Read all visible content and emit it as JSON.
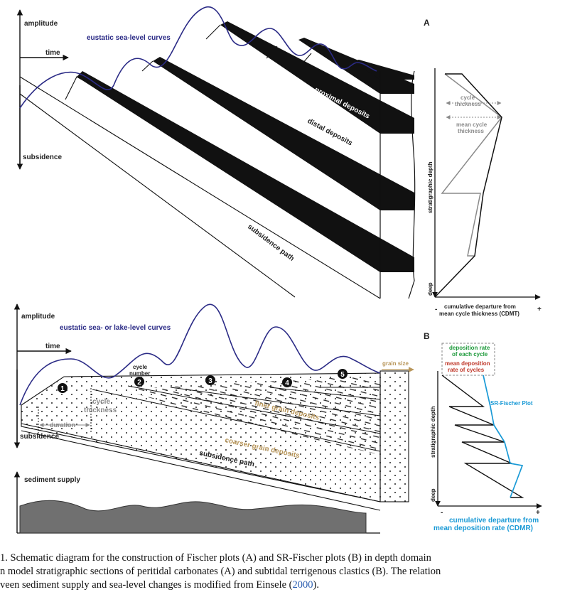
{
  "panel_a": {
    "letter": "A",
    "amplitude": "amplitude",
    "time": "time",
    "subsidence": "subsidence",
    "curves_label": "eustatic sea-level curves",
    "proximal": "proximal deposits",
    "distal": "distal deposits",
    "subsidence_path": "subsidence path",
    "cycle_thickness_1": "cycle",
    "cycle_thickness_2": "thickness",
    "mean_thickness_1": "mean cycle",
    "mean_thickness_2": "thickness",
    "ylabel": "stratigraphic depth",
    "deep": "deep",
    "minus": "-",
    "plus": "+",
    "xlabel_1": "cumulative departure from",
    "xlabel_2": "mean cycle thickness (CDMT)"
  },
  "panel_b": {
    "letter": "B",
    "amplitude": "amplitude",
    "time": "time",
    "subsidence": "subsidence",
    "curves_label": "eustatic sea- or lake-level curves",
    "cycle_number_1": "cycle",
    "cycle_number_2": "number",
    "cycles": [
      "1",
      "2",
      "3",
      "4",
      "5"
    ],
    "cycle_thickness_1": "cycle",
    "cycle_thickness_2": "thickness",
    "duration": "duration",
    "finer": "finer grain deposits",
    "coarser": "coarser grain deposits",
    "subsidence_path": "subsidence path",
    "grain_size": "grain size",
    "sediment_supply": "sediment supply",
    "rate_each_1": "deposition rate",
    "rate_each_2": "of each cycle",
    "mean_rate_1": "mean deposition",
    "mean_rate_2": "rate of cycles",
    "sr_fischer": "SR-Fischer Plot",
    "ylabel": "stratigraphic depth",
    "deep": "deep",
    "minus": "-",
    "plus": "+",
    "xlabel_1": "cumulative departure from",
    "xlabel_2": "mean deposition rate (CDMR)"
  },
  "caption": {
    "line1": "1. Schematic diagram for the construction of Fischer plots (A) and SR-Fischer plots (B) in depth domain",
    "line2": "n model stratigraphic sections of peritidal carbonates (A) and subtidal terrigenous clastics (B). The relation",
    "line3_pre": "veen sediment supply and sea-level changes is modified from Einsele (",
    "line3_ref": "2000",
    "line3_post": ")."
  },
  "colors": {
    "curve": "#2b2b86",
    "grain": "#b8965a",
    "green": "#1f9a3c",
    "red": "#c0392b",
    "sr_plot": "#1a9ad6"
  }
}
